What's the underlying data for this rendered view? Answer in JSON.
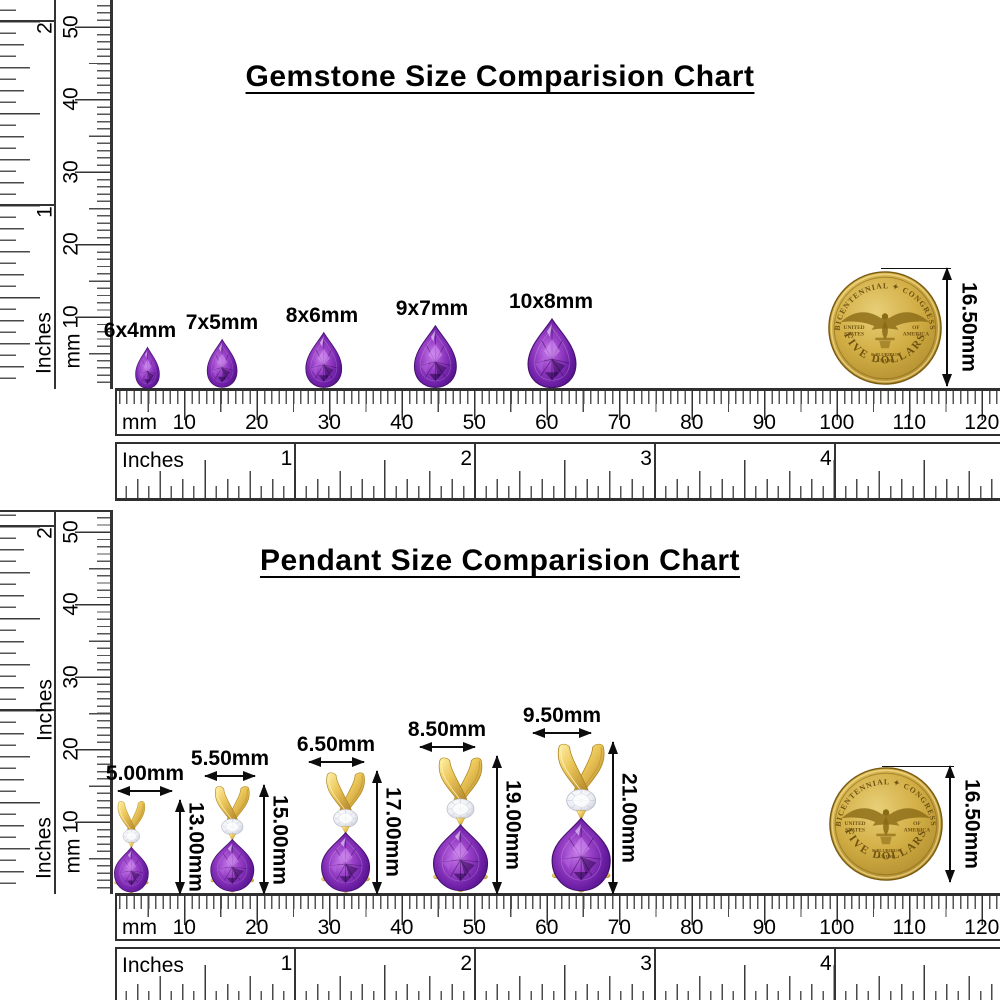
{
  "panels": [
    {
      "title": "Gemstone Size Comparision Chart",
      "items": [
        {
          "label": "6x4mm",
          "w_mm": 4,
          "h_mm": 6
        },
        {
          "label": "7x5mm",
          "w_mm": 5,
          "h_mm": 7
        },
        {
          "label": "8x6mm",
          "w_mm": 6,
          "h_mm": 8
        },
        {
          "label": "9x7mm",
          "w_mm": 7,
          "h_mm": 9
        },
        {
          "label": "10x8mm",
          "w_mm": 8,
          "h_mm": 10
        }
      ]
    },
    {
      "title": "Pendant Size Comparision Chart",
      "items": [
        {
          "width_label": "5.00mm",
          "height_label": "13.00mm",
          "width_mm": 5.0,
          "height_mm": 13.0
        },
        {
          "width_label": "5.50mm",
          "height_label": "15.00mm",
          "width_mm": 5.5,
          "height_mm": 15.0
        },
        {
          "width_label": "6.50mm",
          "height_label": "17.00mm",
          "width_mm": 6.5,
          "height_mm": 17.0
        },
        {
          "width_label": "8.50mm",
          "height_label": "19.00mm",
          "width_mm": 8.5,
          "height_mm": 19.0
        },
        {
          "width_label": "9.50mm",
          "height_label": "21.00mm",
          "width_mm": 9.5,
          "height_mm": 21.0
        }
      ]
    }
  ],
  "rulers": {
    "mm_unit": "mm",
    "inch_unit": "Inches",
    "h_mm_numbers": [
      "10",
      "20",
      "30",
      "40",
      "50",
      "60",
      "70",
      "80",
      "90",
      "100",
      "110",
      "120"
    ],
    "h_inch_numbers": [
      "1",
      "2",
      "3",
      "4"
    ],
    "v_mm_numbers": [
      "10",
      "20",
      "30",
      "40",
      "50"
    ],
    "v_inch_labels_panel1": [
      "1",
      "2"
    ],
    "v_inch_labels_panel2": [
      "Inches",
      "2"
    ],
    "v_bottom_inch_label": "Inches"
  },
  "coin": {
    "top_arc": "BICENTENNIAL ✦ CONGRESS",
    "united": "UNITED",
    "states": "STATES",
    "of": "OF",
    "america": "AMERICA",
    "motto_line1": "E PLURIBUS",
    "motto_line2": "UNUM",
    "denomination": "FIVE DOLLARS",
    "size_label": "16.50mm"
  },
  "colors": {
    "amethyst": "#8f35c0",
    "amethyst_dark": "#4a0e7d",
    "gold": "#d9ad42",
    "ruler_line": "#333333",
    "ink": "#0d0d0d"
  }
}
